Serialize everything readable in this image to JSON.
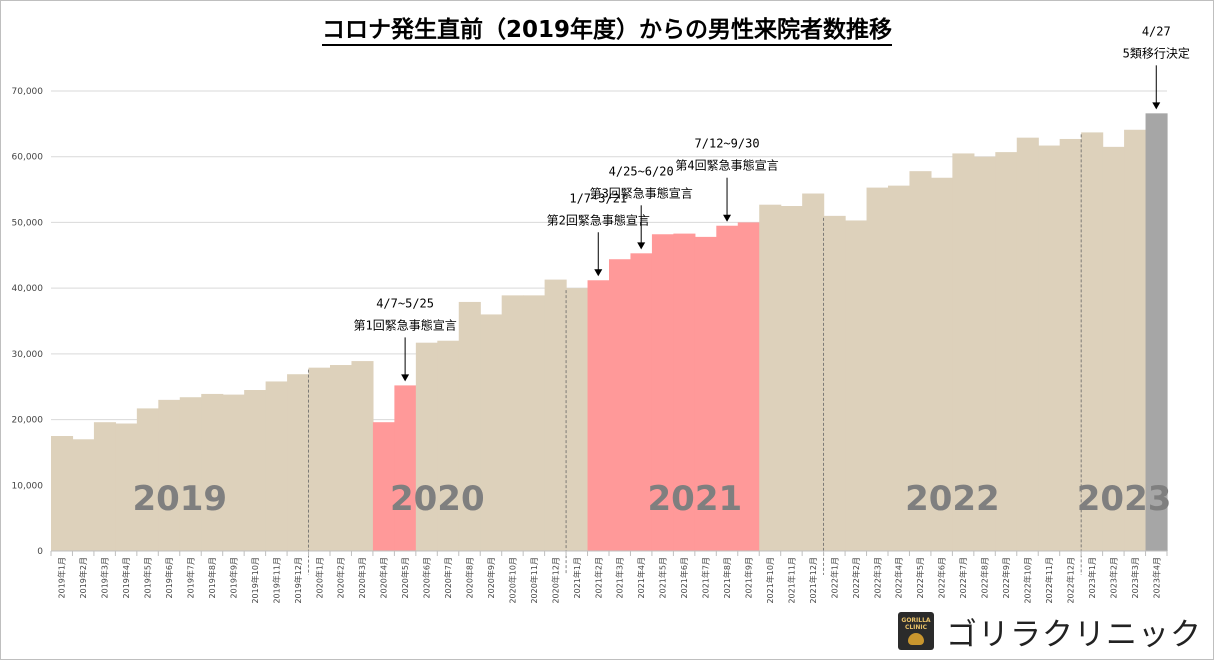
{
  "title": "コロナ発生直前（2019年度）からの男性来院者数推移",
  "logo": {
    "mark_text_1": "GORILLA",
    "mark_text_2": "CLINIC",
    "text": "ゴリラクリニック"
  },
  "colors": {
    "normal": "#ddd1bb",
    "emergency": "#ff9999",
    "latest": "#a6a6a6",
    "year_label": "#7f7f7f",
    "gridline": "#d9d9d9"
  },
  "chart_data": {
    "type": "bar",
    "title": "コロナ発生直前（2019年度）からの男性来院者数推移",
    "xlabel": "",
    "ylabel": "",
    "ylim": [
      0,
      70000
    ],
    "yticks": [
      0,
      10000,
      20000,
      30000,
      40000,
      50000,
      60000,
      70000
    ],
    "ytick_labels": [
      "0",
      "10,000",
      "20,000",
      "30,000",
      "40,000",
      "50,000",
      "60,000",
      "70,000"
    ],
    "grid": true,
    "legend": "none",
    "categories": [
      "2019年1月",
      "2019年2月",
      "2019年3月",
      "2019年4月",
      "2019年5月",
      "2019年6月",
      "2019年7月",
      "2019年8月",
      "2019年9月",
      "2019年10月",
      "2019年11月",
      "2019年12月",
      "2020年1月",
      "2020年2月",
      "2020年3月",
      "2020年4月",
      "2020年5月",
      "2020年6月",
      "2020年7月",
      "2020年8月",
      "2020年9月",
      "2020年10月",
      "2020年11月",
      "2020年12月",
      "2021年1月",
      "2021年2月",
      "2021年3月",
      "2021年4月",
      "2021年5月",
      "2021年6月",
      "2021年7月",
      "2021年8月",
      "2021年9月",
      "2021年10月",
      "2021年11月",
      "2021年12月",
      "2022年1月",
      "2022年2月",
      "2022年3月",
      "2022年4月",
      "2022年5月",
      "2022年6月",
      "2022年7月",
      "2022年8月",
      "2022年9月",
      "2022年10月",
      "2022年11月",
      "2022年12月",
      "2023年1月",
      "2023年2月",
      "2023年3月",
      "2023年4月"
    ],
    "values": [
      17500,
      17000,
      19600,
      19400,
      21700,
      23000,
      23400,
      23900,
      23800,
      24500,
      25800,
      26900,
      27900,
      28300,
      28900,
      19600,
      25200,
      31700,
      32000,
      37900,
      36000,
      38900,
      38900,
      41300,
      40000,
      41200,
      44400,
      45300,
      48200,
      48300,
      47800,
      49500,
      50000,
      52700,
      52500,
      54400,
      51000,
      50300,
      55300,
      55600,
      57800,
      56800,
      60500,
      60000,
      60700,
      62900,
      61700,
      62700,
      63700,
      61500,
      64100,
      66600
    ],
    "bar_category": [
      "normal",
      "normal",
      "normal",
      "normal",
      "normal",
      "normal",
      "normal",
      "normal",
      "normal",
      "normal",
      "normal",
      "normal",
      "normal",
      "normal",
      "normal",
      "emergency",
      "emergency",
      "normal",
      "normal",
      "normal",
      "normal",
      "normal",
      "normal",
      "normal",
      "normal",
      "emergency",
      "emergency",
      "emergency",
      "emergency",
      "emergency",
      "emergency",
      "emergency",
      "emergency",
      "normal",
      "normal",
      "normal",
      "normal",
      "normal",
      "normal",
      "normal",
      "normal",
      "normal",
      "normal",
      "normal",
      "normal",
      "normal",
      "normal",
      "normal",
      "normal",
      "normal",
      "normal",
      "latest"
    ],
    "year_labels": [
      {
        "text": "2019",
        "start": 0,
        "end": 11
      },
      {
        "text": "2020",
        "start": 12,
        "end": 23
      },
      {
        "text": "2021",
        "start": 24,
        "end": 35
      },
      {
        "text": "2022",
        "start": 36,
        "end": 47
      },
      {
        "text": "2023",
        "start": 48,
        "end": 51
      }
    ],
    "year_dividers_after": [
      11,
      23,
      35,
      47
    ],
    "annotations": [
      {
        "lines": [
          "4/7~5/25",
          "第1回緊急事態宣言"
        ],
        "index": 16
      },
      {
        "lines": [
          "1/7~3/21",
          "第2回緊急事態宣言"
        ],
        "index": 25
      },
      {
        "lines": [
          "4/25~6/20",
          "第3回緊急事態宣言"
        ],
        "index": 27
      },
      {
        "lines": [
          "7/12~9/30",
          "第4回緊急事態宣言"
        ],
        "index": 31
      },
      {
        "lines": [
          "4/27",
          "5類移行決定"
        ],
        "index": 51
      }
    ]
  }
}
